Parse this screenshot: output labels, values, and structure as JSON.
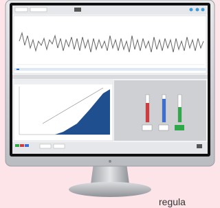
{
  "caption": "regula"
}
